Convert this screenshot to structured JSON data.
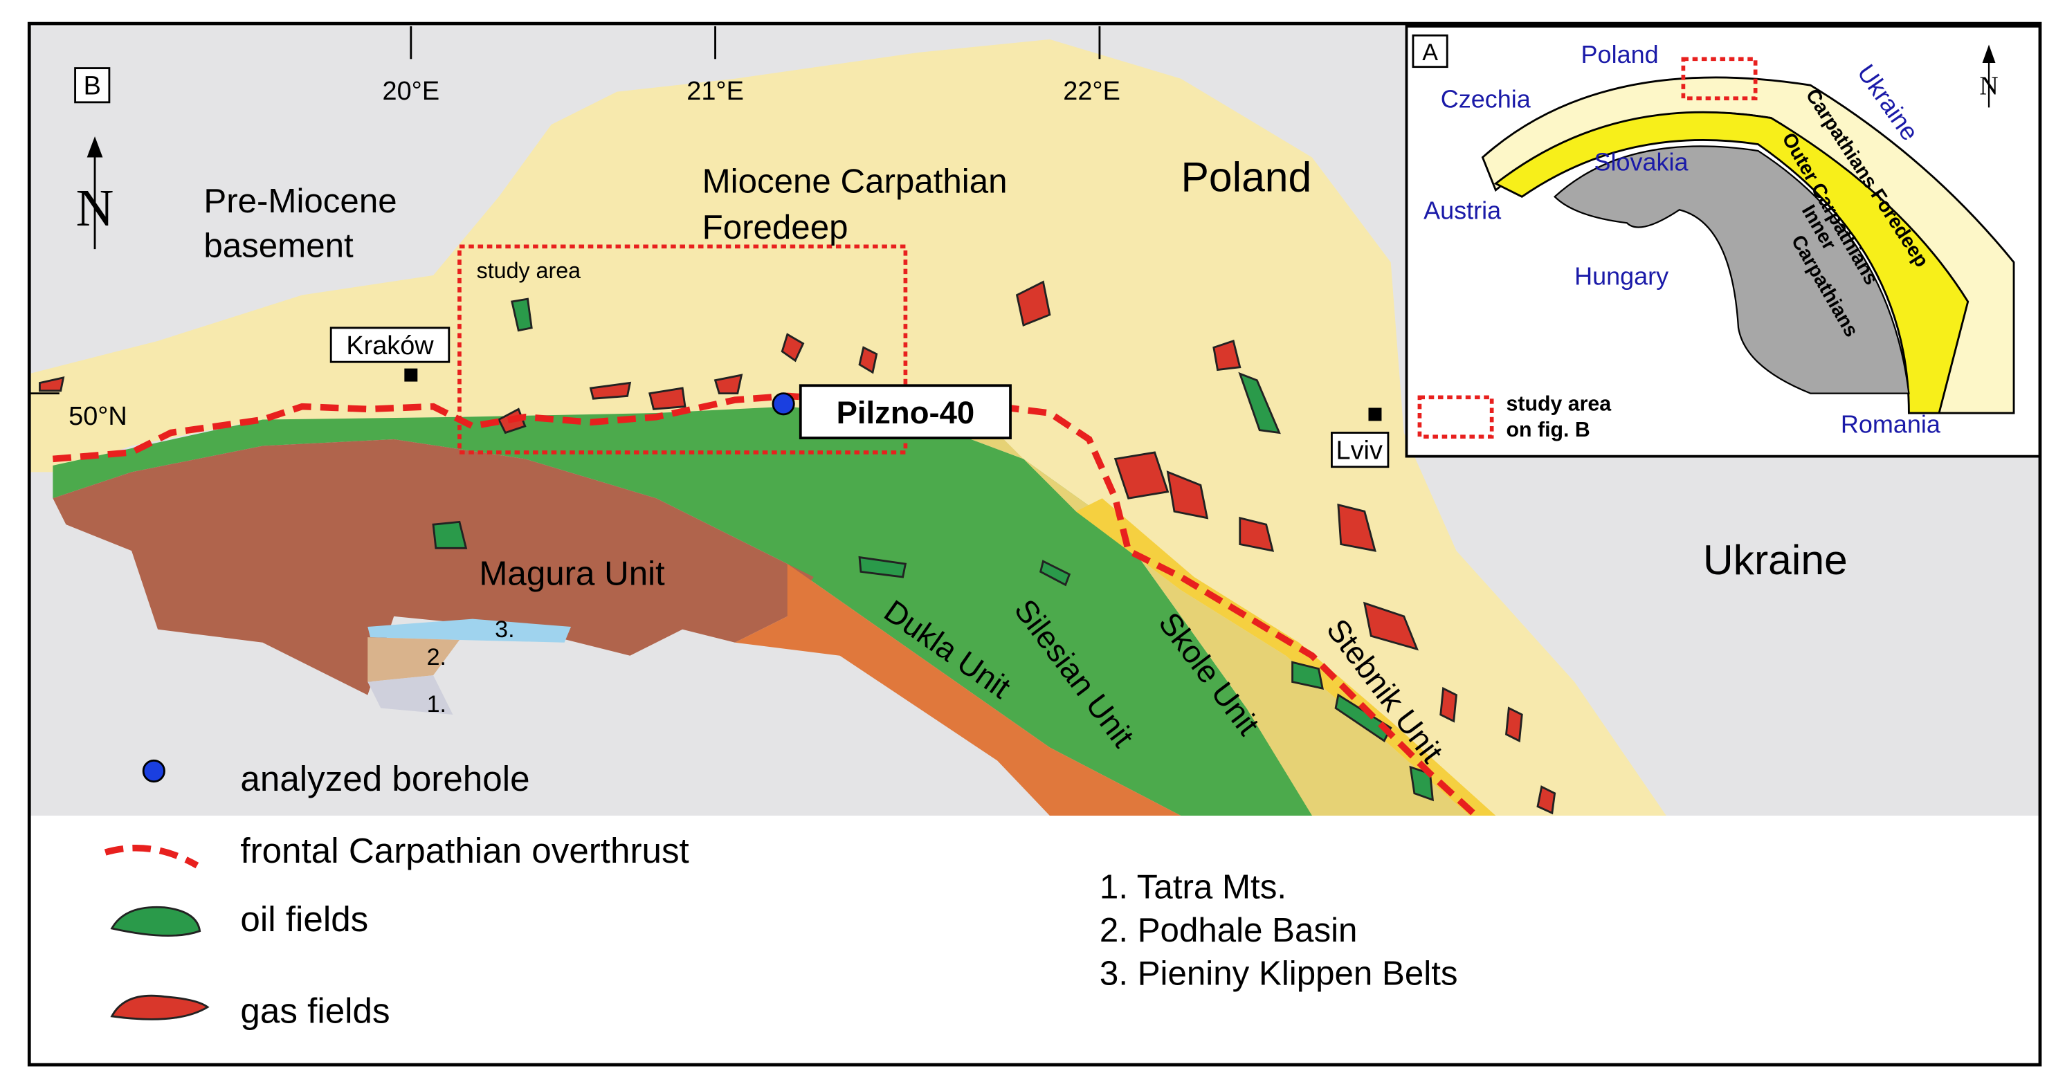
{
  "panel_b": {
    "label": "B",
    "longitude_labels": [
      "20°E",
      "21°E",
      "22°E"
    ],
    "latitude_label": "50°N",
    "north": "N",
    "region_labels": {
      "pre_miocene": [
        "Pre-Miocene",
        "basement"
      ],
      "foredeep": [
        "Miocene Carpathian",
        "Foredeep"
      ],
      "poland": "Poland",
      "ukraine": "Ukraine"
    },
    "study_area": "study area",
    "cities": [
      "Kraków",
      "Lviv"
    ],
    "borehole": "Pilzno-40",
    "units": [
      "Magura Unit",
      "Dukla Unit",
      "Silesian Unit",
      "Skole Unit",
      "Stebnik Unit"
    ],
    "small_unit_numbers": [
      "1.",
      "2.",
      "3."
    ]
  },
  "legend": {
    "items": [
      "analyzed borehole",
      "frontal Carpathian overthrust",
      "oil fields",
      "gas fields"
    ],
    "numbered": [
      "1. Tatra Mts.",
      "2. Podhale Basin",
      "3. Pieniny Klippen Belts"
    ]
  },
  "panel_a": {
    "label": "A",
    "north": "N",
    "countries": [
      "Poland",
      "Czechia",
      "Ukraine",
      "Slovakia",
      "Austria",
      "Hungary",
      "Romania"
    ],
    "zones": {
      "foredeep": "Carpathians Foredeep",
      "outer": "Outer Carpathians",
      "inner": [
        "Inner",
        "Carpathians"
      ]
    },
    "study_area_note": [
      "study area",
      "on fig. B"
    ]
  }
}
